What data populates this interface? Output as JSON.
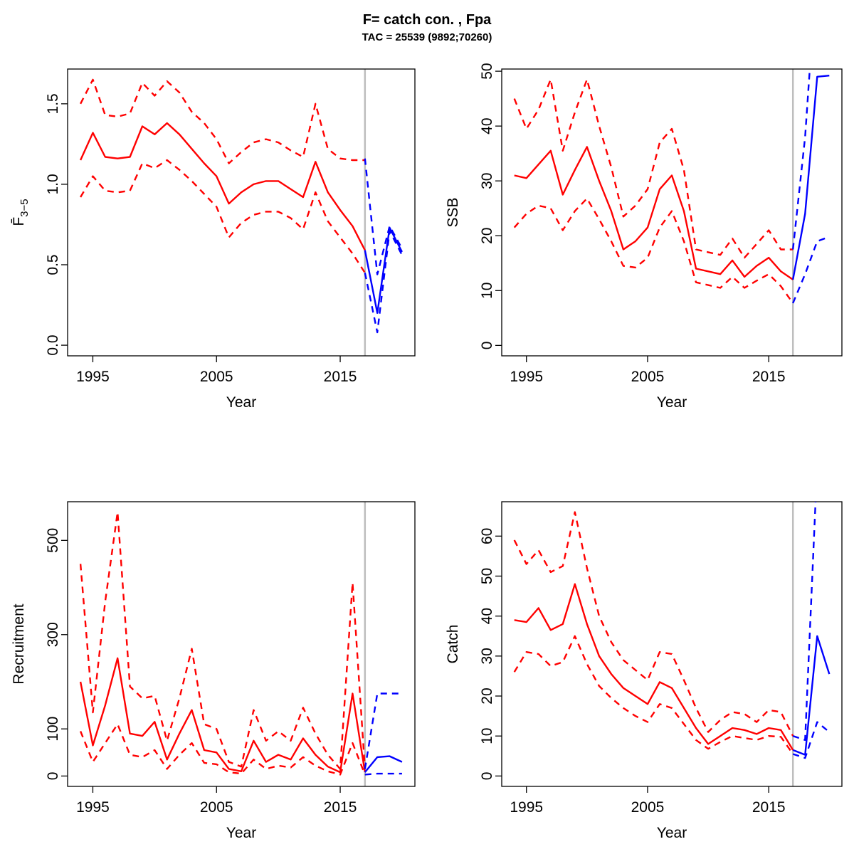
{
  "header": {
    "title": "F= catch con. , Fpa",
    "subtitle": "TAC = 25539 (9892;70260)"
  },
  "colors": {
    "historic": "#FF0000",
    "forecast": "#0000FF",
    "divider": "#BEBEBE",
    "frame": "#000000"
  },
  "chart_data": [
    {
      "id": "fbar",
      "type": "line",
      "xlabel": "Year",
      "ylabel": {
        "main": "F̄",
        "sub": "3−5"
      },
      "xlim": [
        1992.96,
        2021.04
      ],
      "ylim": [
        -0.066,
        1.716
      ],
      "grid": false,
      "legend": "none",
      "xticks": [
        1995,
        2005,
        2015
      ],
      "xtick_labels": [
        "1995",
        "2005",
        "2015"
      ],
      "yticks": [
        0,
        0.5,
        1.0,
        1.5
      ],
      "ytick_labels": [
        "0.0",
        "0.5",
        "1.0",
        "1.5"
      ],
      "vline_x": 2017,
      "series": [
        {
          "name": "ci-upper",
          "color": "#FF0000",
          "dash": true,
          "x": [
            1994,
            1995,
            1996,
            1997,
            1998,
            1999,
            2000,
            2001,
            2002,
            2003,
            2004,
            2005,
            2006,
            2007,
            2008,
            2009,
            2010,
            2011,
            2012,
            2013,
            2014,
            2015,
            2016,
            2017
          ],
          "y": [
            1.5,
            1.65,
            1.43,
            1.42,
            1.44,
            1.63,
            1.55,
            1.64,
            1.57,
            1.45,
            1.38,
            1.28,
            1.13,
            1.2,
            1.26,
            1.28,
            1.26,
            1.21,
            1.17,
            1.5,
            1.22,
            1.16,
            1.15,
            1.15
          ]
        },
        {
          "name": "median",
          "color": "#FF0000",
          "dash": false,
          "x": [
            1994,
            1995,
            1996,
            1997,
            1998,
            1999,
            2000,
            2001,
            2002,
            2003,
            2004,
            2005,
            2006,
            2007,
            2008,
            2009,
            2010,
            2011,
            2012,
            2013,
            2014,
            2015,
            2016,
            2017
          ],
          "y": [
            1.15,
            1.32,
            1.17,
            1.16,
            1.17,
            1.36,
            1.31,
            1.38,
            1.31,
            1.22,
            1.13,
            1.05,
            0.88,
            0.95,
            1.0,
            1.02,
            1.02,
            0.97,
            0.92,
            1.14,
            0.95,
            0.84,
            0.74,
            0.59
          ]
        },
        {
          "name": "ci-lower",
          "color": "#FF0000",
          "dash": true,
          "x": [
            1994,
            1995,
            1996,
            1997,
            1998,
            1999,
            2000,
            2001,
            2002,
            2003,
            2004,
            2005,
            2006,
            2007,
            2008,
            2009,
            2010,
            2011,
            2012,
            2013,
            2014,
            2015,
            2016,
            2017
          ],
          "y": [
            0.92,
            1.05,
            0.96,
            0.95,
            0.96,
            1.13,
            1.1,
            1.15,
            1.09,
            1.02,
            0.94,
            0.86,
            0.67,
            0.76,
            0.81,
            0.83,
            0.83,
            0.79,
            0.72,
            0.95,
            0.77,
            0.67,
            0.57,
            0.45
          ]
        },
        {
          "name": "forecast-ci-upper",
          "color": "#0000FF",
          "dash": true,
          "x": [
            2017,
            2018,
            2019,
            2020
          ],
          "y": [
            1.16,
            0.44,
            0.74,
            0.6
          ]
        },
        {
          "name": "forecast-median",
          "color": "#0000FF",
          "dash": false,
          "x": [
            2017,
            2018,
            2019,
            2020
          ],
          "y": [
            0.59,
            0.2,
            0.73,
            0.58
          ]
        },
        {
          "name": "forecast-ci-lower",
          "color": "#0000FF",
          "dash": true,
          "x": [
            2017,
            2018,
            2019,
            2020
          ],
          "y": [
            0.45,
            0.08,
            0.71,
            0.56
          ]
        }
      ]
    },
    {
      "id": "ssb",
      "type": "line",
      "xlabel": "Year",
      "ylabel": "SSB",
      "xlim": [
        1992.96,
        2021.04
      ],
      "ylim": [
        -1.9,
        50.4
      ],
      "grid": false,
      "legend": "none",
      "xticks": [
        1995,
        2005,
        2015
      ],
      "xtick_labels": [
        "1995",
        "2005",
        "2015"
      ],
      "yticks": [
        0,
        10,
        20,
        30,
        40,
        50
      ],
      "ytick_labels": [
        "0",
        "10",
        "20",
        "30",
        "40",
        "50"
      ],
      "vline_x": 2017,
      "series": [
        {
          "name": "ci-upper",
          "color": "#FF0000",
          "dash": true,
          "x": [
            1994,
            1995,
            1996,
            1997,
            1998,
            1999,
            2000,
            2001,
            2002,
            2003,
            2004,
            2005,
            2006,
            2007,
            2008,
            2009,
            2010,
            2011,
            2012,
            2013,
            2014,
            2015,
            2016,
            2017
          ],
          "y": [
            45,
            39.5,
            43,
            48.5,
            35.5,
            42.5,
            48.5,
            40,
            32.5,
            23.5,
            25.5,
            28.5,
            37,
            39.5,
            32,
            17.5,
            17,
            16.5,
            19.5,
            16,
            18.5,
            21,
            17.5,
            17.5
          ]
        },
        {
          "name": "median",
          "color": "#FF0000",
          "dash": false,
          "x": [
            1994,
            1995,
            1996,
            1997,
            1998,
            1999,
            2000,
            2001,
            2002,
            2003,
            2004,
            2005,
            2006,
            2007,
            2008,
            2009,
            2010,
            2011,
            2012,
            2013,
            2014,
            2015,
            2016,
            2017
          ],
          "y": [
            31,
            30.5,
            33,
            35.5,
            27.5,
            32,
            36.2,
            30,
            24.5,
            17.5,
            19,
            21.5,
            28.5,
            31,
            24.5,
            14,
            13.5,
            13,
            15.5,
            12.5,
            14.5,
            16,
            13.5,
            12
          ]
        },
        {
          "name": "ci-lower",
          "color": "#FF0000",
          "dash": true,
          "x": [
            1994,
            1995,
            1996,
            1997,
            1998,
            1999,
            2000,
            2001,
            2002,
            2003,
            2004,
            2005,
            2006,
            2007,
            2008,
            2009,
            2010,
            2011,
            2012,
            2013,
            2014,
            2015,
            2016,
            2017
          ],
          "y": [
            21.5,
            24,
            25.5,
            25,
            21,
            24.5,
            26.8,
            23,
            19,
            14.5,
            14.2,
            16,
            21.5,
            24.5,
            19,
            11.5,
            11,
            10.5,
            12.5,
            10.5,
            11.8,
            13,
            10.8,
            7.7
          ]
        },
        {
          "name": "forecast-ci-upper",
          "color": "#0000FF",
          "dash": true,
          "x": [
            2017,
            2018,
            2019
          ],
          "y": [
            17.5,
            38,
            70
          ]
        },
        {
          "name": "forecast-median",
          "color": "#0000FF",
          "dash": false,
          "x": [
            2017,
            2018,
            2019,
            2020
          ],
          "y": [
            12,
            24,
            49,
            49.2
          ]
        },
        {
          "name": "forecast-ci-lower",
          "color": "#0000FF",
          "dash": true,
          "x": [
            2017,
            2018,
            2019,
            2020
          ],
          "y": [
            7.7,
            13,
            19,
            19.8
          ]
        }
      ]
    },
    {
      "id": "rec",
      "type": "line",
      "xlabel": "Year",
      "ylabel": "Recruitment",
      "xlim": [
        1992.96,
        2021.04
      ],
      "ylim": [
        -22,
        582
      ],
      "grid": false,
      "legend": "none",
      "xticks": [
        1995,
        2005,
        2015
      ],
      "xtick_labels": [
        "1995",
        "2005",
        "2015"
      ],
      "yticks": [
        0,
        100,
        300,
        500
      ],
      "ytick_labels": [
        "0",
        "100",
        "300",
        "500"
      ],
      "vline_x": 2017,
      "series": [
        {
          "name": "ci-upper",
          "color": "#FF0000",
          "dash": true,
          "x": [
            1994,
            1995,
            1996,
            1997,
            1998,
            1999,
            2000,
            2001,
            2002,
            2003,
            2004,
            2005,
            2006,
            2007,
            2008,
            2009,
            2010,
            2011,
            2012,
            2013,
            2014,
            2015,
            2016,
            2017
          ],
          "y": [
            450,
            135,
            370,
            560,
            190,
            165,
            170,
            75,
            165,
            270,
            110,
            100,
            30,
            20,
            140,
            75,
            95,
            75,
            145,
            90,
            45,
            15,
            410,
            15
          ]
        },
        {
          "name": "median",
          "color": "#FF0000",
          "dash": false,
          "x": [
            1994,
            1995,
            1996,
            1997,
            1998,
            1999,
            2000,
            2001,
            2002,
            2003,
            2004,
            2005,
            2006,
            2007,
            2008,
            2009,
            2010,
            2011,
            2012,
            2013,
            2014,
            2015,
            2016,
            2017
          ],
          "y": [
            200,
            65,
            150,
            250,
            90,
            85,
            115,
            35,
            90,
            140,
            55,
            50,
            15,
            10,
            75,
            30,
            45,
            35,
            80,
            45,
            20,
            8,
            175,
            8
          ]
        },
        {
          "name": "ci-lower",
          "color": "#FF0000",
          "dash": true,
          "x": [
            1994,
            1995,
            1996,
            1997,
            1998,
            1999,
            2000,
            2001,
            2002,
            2003,
            2004,
            2005,
            2006,
            2007,
            2008,
            2009,
            2010,
            2011,
            2012,
            2013,
            2014,
            2015,
            2016,
            2017
          ],
          "y": [
            95,
            30,
            70,
            110,
            45,
            40,
            55,
            15,
            45,
            70,
            28,
            25,
            8,
            5,
            35,
            15,
            22,
            18,
            40,
            22,
            10,
            3,
            70,
            3
          ]
        },
        {
          "name": "forecast-ci-upper",
          "color": "#0000FF",
          "dash": true,
          "x": [
            2017,
            2018,
            2019,
            2020
          ],
          "y": [
            15,
            175,
            175,
            175
          ]
        },
        {
          "name": "forecast-median",
          "color": "#0000FF",
          "dash": false,
          "x": [
            2017,
            2018,
            2019,
            2020
          ],
          "y": [
            8,
            40,
            42,
            30
          ]
        },
        {
          "name": "forecast-ci-lower",
          "color": "#0000FF",
          "dash": true,
          "x": [
            2017,
            2018,
            2019,
            2020
          ],
          "y": [
            3,
            5,
            5,
            5
          ]
        }
      ]
    },
    {
      "id": "catch",
      "type": "line",
      "xlabel": "Year",
      "ylabel": "Catch",
      "xlim": [
        1992.96,
        2021.04
      ],
      "ylim": [
        -2.6,
        68.6
      ],
      "grid": false,
      "legend": "none",
      "xticks": [
        1995,
        2005,
        2015
      ],
      "xtick_labels": [
        "1995",
        "2005",
        "2015"
      ],
      "yticks": [
        0,
        10,
        20,
        30,
        40,
        50,
        60
      ],
      "ytick_labels": [
        "0",
        "10",
        "20",
        "30",
        "40",
        "50",
        "60"
      ],
      "vline_x": 2017,
      "series": [
        {
          "name": "ci-upper",
          "color": "#FF0000",
          "dash": true,
          "x": [
            1994,
            1995,
            1996,
            1997,
            1998,
            1999,
            2000,
            2001,
            2002,
            2003,
            2004,
            2005,
            2006,
            2007,
            2008,
            2009,
            2010,
            2011,
            2012,
            2013,
            2014,
            2015,
            2016,
            2017
          ],
          "y": [
            59,
            53,
            56.5,
            51,
            52.5,
            66,
            52,
            40,
            33.5,
            29,
            26.5,
            24,
            31,
            30.5,
            24,
            17,
            11,
            14,
            16,
            15.5,
            13.5,
            16.5,
            16,
            10
          ]
        },
        {
          "name": "median",
          "color": "#FF0000",
          "dash": false,
          "x": [
            1994,
            1995,
            1996,
            1997,
            1998,
            1999,
            2000,
            2001,
            2002,
            2003,
            2004,
            2005,
            2006,
            2007,
            2008,
            2009,
            2010,
            2011,
            2012,
            2013,
            2014,
            2015,
            2016,
            2017
          ],
          "y": [
            39,
            38.5,
            42,
            36.5,
            38,
            48,
            38,
            30,
            25.5,
            22,
            20,
            18,
            23.5,
            22,
            17,
            12,
            8,
            10,
            12,
            11.5,
            10.5,
            12,
            11.5,
            6.5
          ]
        },
        {
          "name": "ci-lower",
          "color": "#FF0000",
          "dash": true,
          "x": [
            1994,
            1995,
            1996,
            1997,
            1998,
            1999,
            2000,
            2001,
            2002,
            2003,
            2004,
            2005,
            2006,
            2007,
            2008,
            2009,
            2010,
            2011,
            2012,
            2013,
            2014,
            2015,
            2016,
            2017
          ],
          "y": [
            26,
            31,
            30.5,
            27.5,
            28.5,
            35,
            28,
            22.5,
            19.5,
            17,
            15,
            13.5,
            18,
            17,
            13,
            9,
            6.8,
            8.5,
            10,
            9.5,
            9,
            10,
            9.8,
            5.5
          ]
        },
        {
          "name": "forecast-ci-upper",
          "color": "#0000FF",
          "dash": true,
          "x": [
            2017,
            2018,
            2019
          ],
          "y": [
            10,
            9,
            78
          ]
        },
        {
          "name": "forecast-median",
          "color": "#0000FF",
          "dash": false,
          "x": [
            2017,
            2018,
            2019,
            2020
          ],
          "y": [
            6.5,
            5.3,
            35,
            25.5
          ]
        },
        {
          "name": "forecast-ci-lower",
          "color": "#0000FF",
          "dash": true,
          "x": [
            2017,
            2018,
            2019,
            2020
          ],
          "y": [
            5.5,
            4.5,
            13.5,
            11
          ]
        }
      ]
    }
  ]
}
